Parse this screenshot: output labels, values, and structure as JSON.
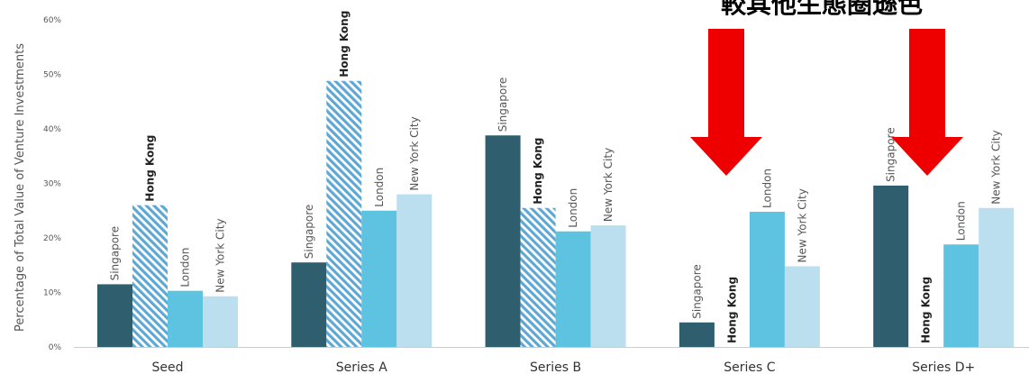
{
  "chart_data": {
    "type": "bar",
    "ylabel": "Percentage of Total Value of Venture Investments",
    "ylim": [
      0,
      60
    ],
    "yticks": [
      "0%",
      "10%",
      "20%",
      "30%",
      "40%",
      "50%",
      "60%"
    ],
    "grid": false,
    "categories": [
      "Seed",
      "Series A",
      "Series B",
      "Series C",
      "Series D+"
    ],
    "series": [
      {
        "name": "Singapore",
        "color": "#2f5f6e",
        "pattern": "solid",
        "values": [
          11.5,
          15.5,
          38.8,
          4.5,
          29.6
        ]
      },
      {
        "name": "Hong Kong",
        "color": "#5fa8d3",
        "pattern": "hatched",
        "bold_label": true,
        "values": [
          26,
          48.8,
          25.5,
          0,
          0
        ]
      },
      {
        "name": "London",
        "color": "#5ec3e0",
        "pattern": "solid",
        "values": [
          10.3,
          25,
          21.2,
          24.8,
          18.8
        ]
      },
      {
        "name": "New York City",
        "color": "#bcdff0",
        "pattern": "solid",
        "values": [
          9.3,
          28,
          22.3,
          14.8,
          25.5
        ]
      }
    ],
    "annotation": {
      "text": "較其他生態圈遜色",
      "arrow_color": "#ee0000",
      "arrows_over": [
        "Series C",
        "Series D+"
      ]
    }
  }
}
